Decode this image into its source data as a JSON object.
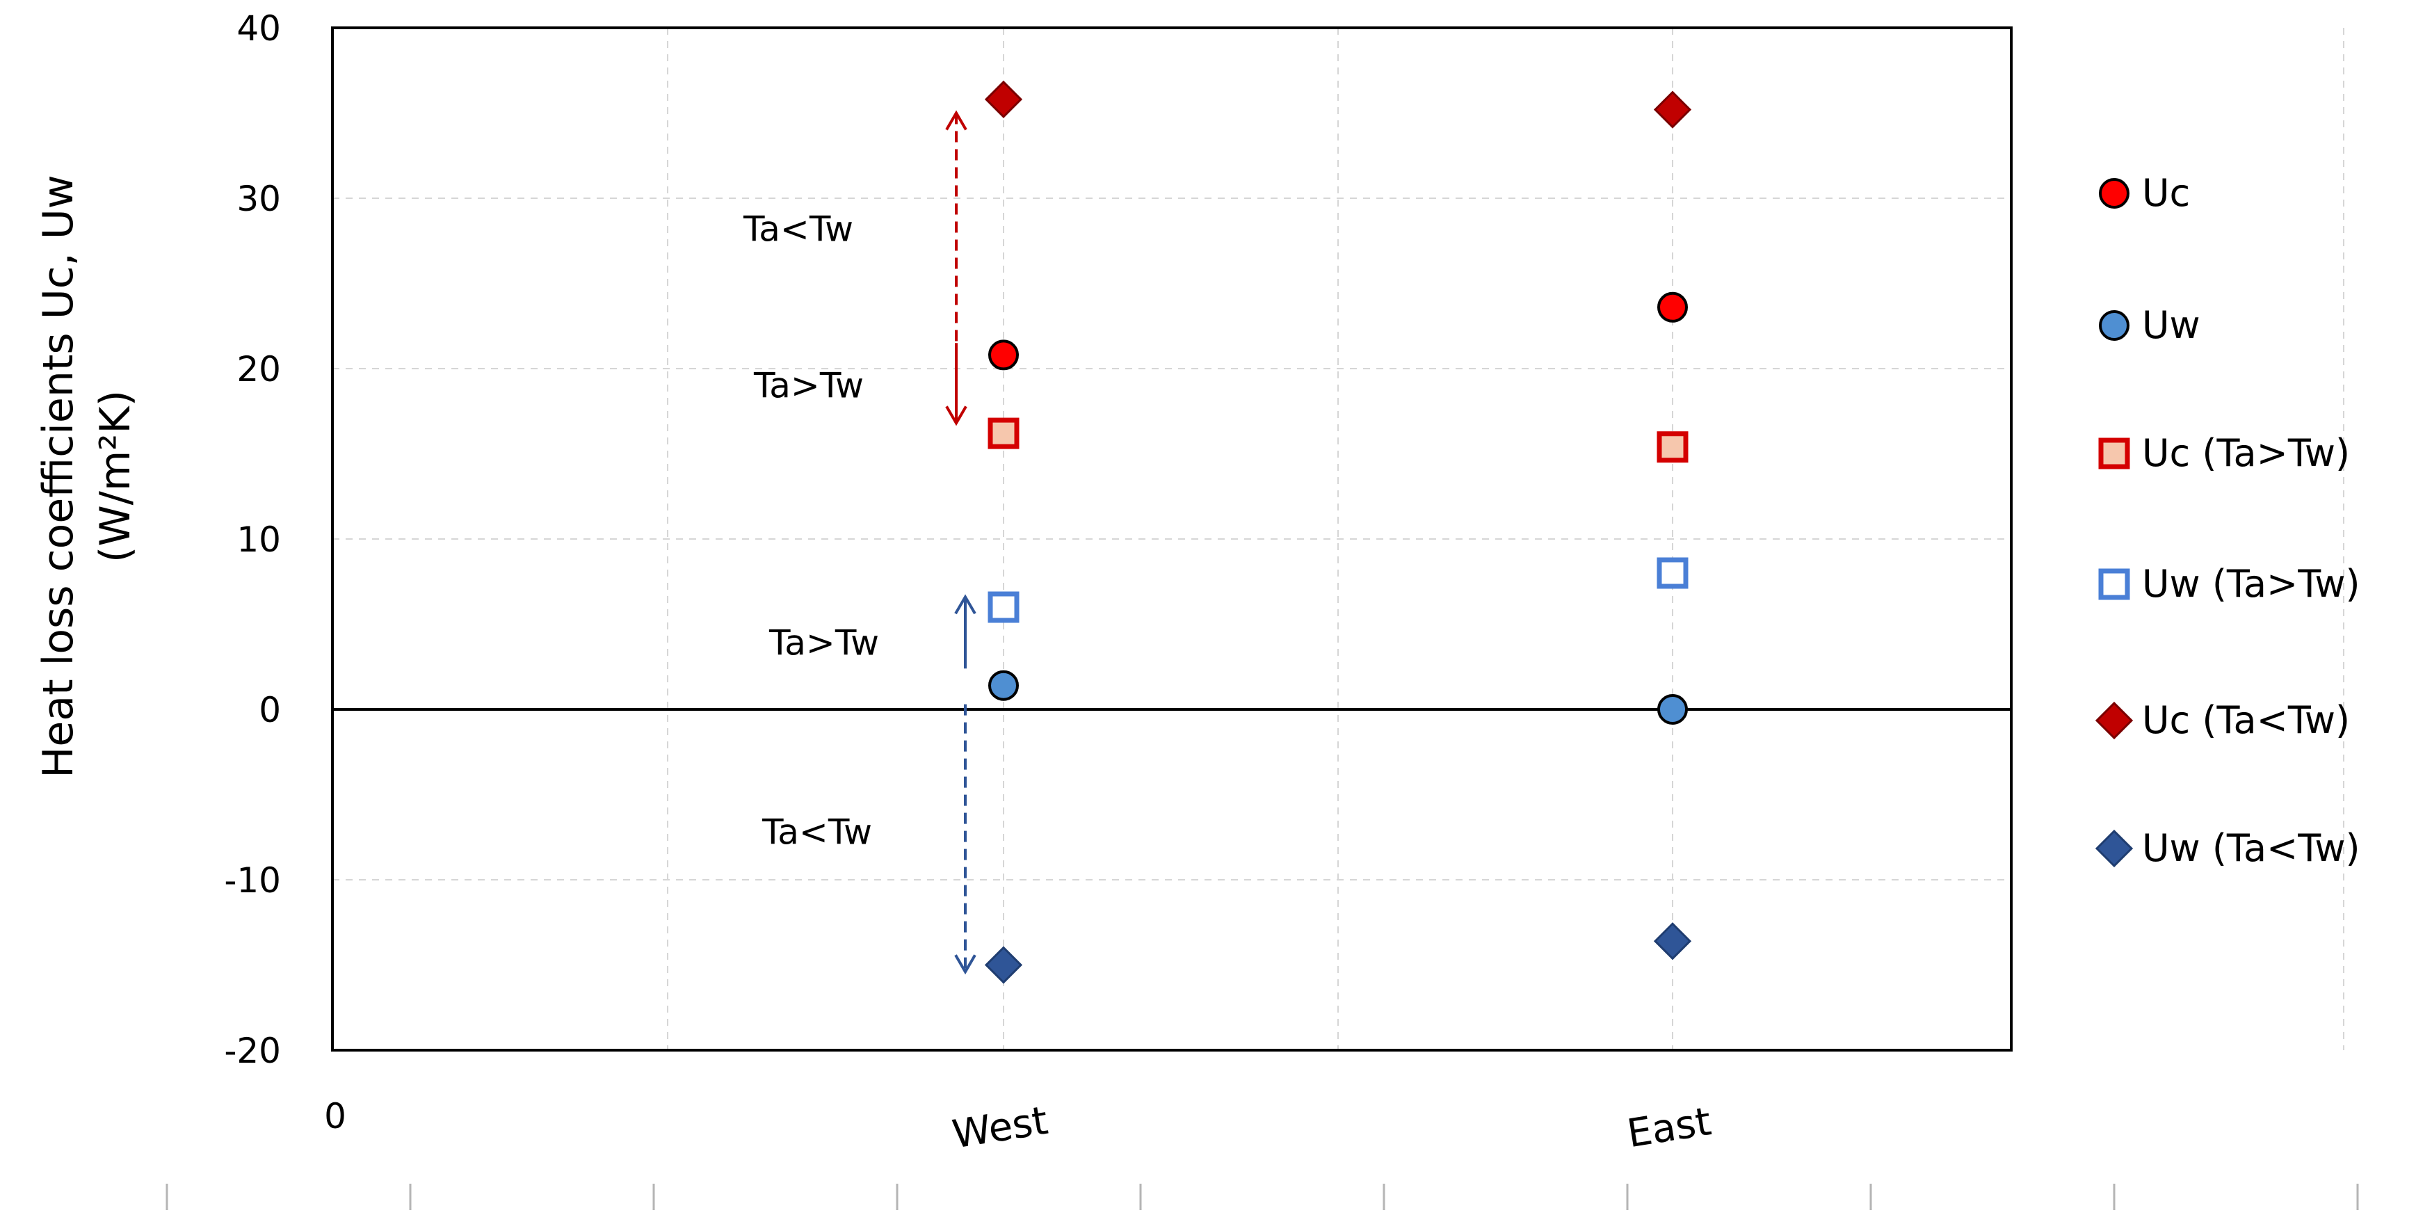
{
  "chart_data": {
    "type": "scatter",
    "title": "",
    "xlabel": "",
    "ylabel": "Heat loss coefficients Uc, Uw",
    "ylabel_unit": "(W/m²K)",
    "ylim": [
      -20,
      40
    ],
    "yticks": [
      "-20",
      "-10",
      "0",
      "10",
      "20",
      "30",
      "40"
    ],
    "x_origin_label": "0",
    "categories": [
      "West",
      "East"
    ],
    "grid": true,
    "legend_position": "right",
    "series": [
      {
        "name": "Uc",
        "marker": "circle",
        "fill": "#ff0000",
        "stroke": "#000000",
        "values": [
          20.8,
          23.6
        ]
      },
      {
        "name": "Uw",
        "marker": "circle",
        "fill": "#4f8fd2",
        "stroke": "#000000",
        "values": [
          1.4,
          0.0
        ]
      },
      {
        "name": "Uc (Ta>Tw)",
        "marker": "square",
        "fill": "#f6c7ad",
        "stroke": "#d40000",
        "values": [
          16.2,
          15.4
        ]
      },
      {
        "name": "Uw (Ta>Tw)",
        "marker": "square",
        "fill": "#ffffff",
        "stroke": "#4a7fd6",
        "values": [
          6.0,
          8.0
        ]
      },
      {
        "name": "Uc (Ta<Tw)",
        "marker": "diamond",
        "fill": "#c00000",
        "stroke": "#7a0000",
        "values": [
          35.8,
          35.2
        ]
      },
      {
        "name": "Uw (Ta<Tw)",
        "marker": "diamond",
        "fill": "#2f5597",
        "stroke": "#1f3d70",
        "values": [
          -15.0,
          -13.6
        ]
      }
    ],
    "annotations": [
      {
        "text": "Ta<Tw",
        "color": "#c00000"
      },
      {
        "text": "Ta>Tw",
        "color": "#c00000"
      },
      {
        "text": "Ta>Tw",
        "color": "#2f5597"
      },
      {
        "text": "Ta<Tw",
        "color": "#2f5597"
      }
    ]
  }
}
